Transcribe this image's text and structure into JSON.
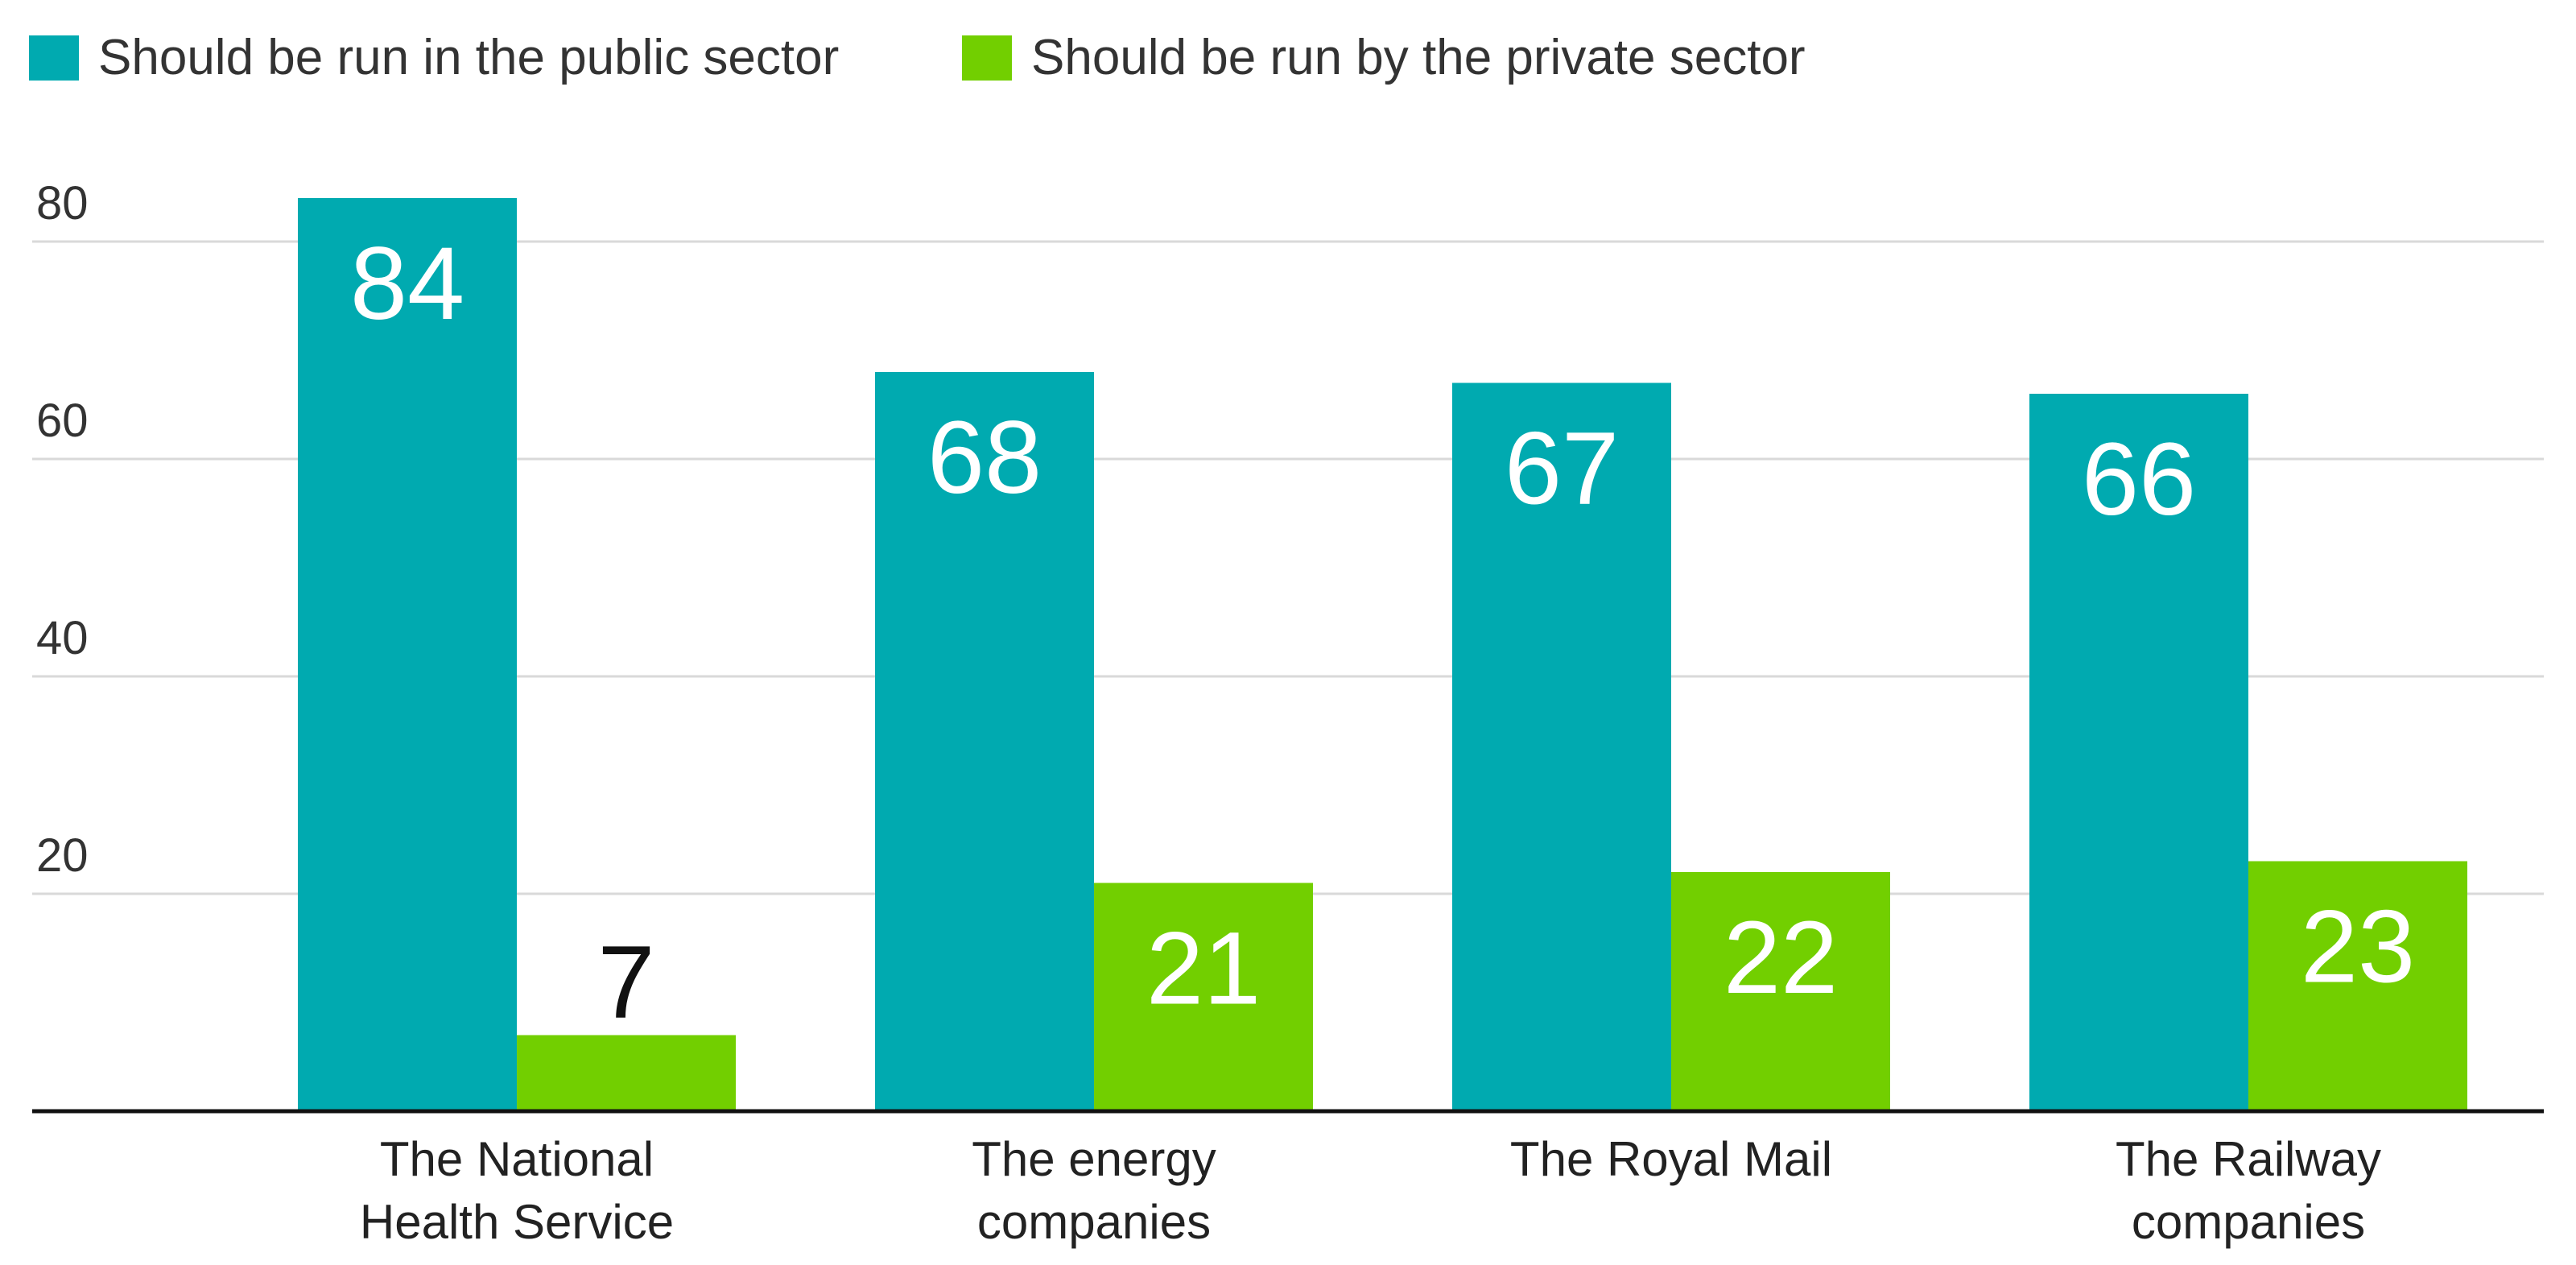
{
  "chart_data": {
    "type": "bar",
    "categories": [
      [
        "The National",
        "Health Service"
      ],
      [
        "The energy",
        "companies"
      ],
      [
        "The Royal Mail"
      ],
      [
        "The Railway",
        "companies"
      ]
    ],
    "series": [
      {
        "name": "Should be run in the public sector",
        "color": "#00aab0",
        "values": [
          84,
          68,
          67,
          66
        ]
      },
      {
        "name": "Should be run by the private sector",
        "color": "#72cf00",
        "values": [
          7,
          21,
          22,
          23
        ]
      }
    ],
    "yticks": [
      20,
      40,
      60,
      80
    ],
    "ylim": [
      0,
      90
    ],
    "grid": true,
    "legend": "top-left",
    "title": "",
    "xlabel": "",
    "ylabel": ""
  }
}
